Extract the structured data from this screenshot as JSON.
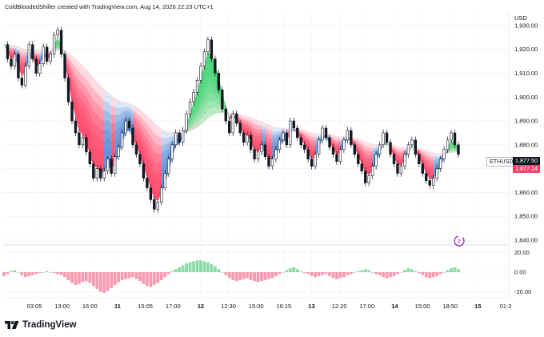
{
  "attribution": "ColdBloodedShiller created with TradingView.com, Aug 14, 2026 22:23 UTC+1",
  "currency": "USD",
  "brand": "TradingView",
  "symbol": "ETHUSD",
  "price_tags": {
    "last": "1,877.50",
    "secondary": "1,877.14"
  },
  "colors": {
    "bull": "#26c05a",
    "bear": "#f0456e",
    "ribbon_up": "#4cd67a",
    "ribbon_down": "#ff4d6d",
    "ribbon_cool": "#5b8fd6",
    "candle": "#131722",
    "tag_last": "#131722",
    "tag_secondary": "#f0456e"
  },
  "chart_data": [
    {
      "type": "line",
      "title": "ETHUSD",
      "series": [
        {
          "values": [
            1922,
            1916,
            1913,
            1918,
            1908,
            1905,
            1913,
            1922,
            1916,
            1910,
            1914,
            1921,
            1915,
            1918,
            1926,
            1928,
            1918,
            1908,
            1898,
            1890,
            1885,
            1880,
            1883,
            1877,
            1872,
            1866,
            1870,
            1866,
            1869,
            1874,
            1868,
            1875,
            1879,
            1885,
            1890,
            1887,
            1880,
            1876,
            1872,
            1866,
            1862,
            1857,
            1853,
            1856,
            1862,
            1868,
            1874,
            1880,
            1885,
            1881,
            1886,
            1893,
            1898,
            1902,
            1907,
            1913,
            1919,
            1924,
            1916,
            1910,
            1903,
            1895,
            1890,
            1885,
            1893,
            1889,
            1885,
            1881,
            1884,
            1878,
            1874,
            1877,
            1880,
            1875,
            1871,
            1874,
            1878,
            1882,
            1885,
            1880,
            1890,
            1887,
            1883,
            1880,
            1878,
            1874,
            1871,
            1876,
            1882,
            1887,
            1883,
            1879,
            1876,
            1873,
            1878,
            1882,
            1886,
            1880,
            1876,
            1872,
            1869,
            1864,
            1867,
            1871,
            1876,
            1880,
            1885,
            1881,
            1876,
            1872,
            1868,
            1871,
            1876,
            1880,
            1882,
            1876,
            1872,
            1868,
            1865,
            1863,
            1866,
            1870,
            1874,
            1878,
            1882,
            1885,
            1880,
            1876
          ]
        }
      ],
      "ylim": [
        1838,
        1936
      ],
      "yticks": [
        "1,930.00",
        "1,920.00",
        "1,910.00",
        "1,900.00",
        "1,890.00",
        "1,880.00",
        "1,870.00",
        "1,860.00",
        "1,850.00",
        "1,840.00"
      ],
      "grid": true
    },
    {
      "type": "bar",
      "title": "",
      "series": [
        {
          "values": [
            -4,
            -2,
            1,
            2,
            0,
            -3,
            -5,
            -4,
            -3,
            -2,
            -1,
            0,
            1,
            0,
            -1,
            -2,
            -3,
            -5,
            -8,
            -11,
            -13,
            -12,
            -10,
            -9,
            -11,
            -14,
            -17,
            -20,
            -21,
            -19,
            -16,
            -13,
            -10,
            -8,
            -7,
            -6,
            -5,
            -7,
            -9,
            -12,
            -14,
            -15,
            -13,
            -11,
            -8,
            -5,
            -2,
            1,
            3,
            5,
            7,
            9,
            10,
            11,
            12,
            12,
            11,
            10,
            8,
            6,
            3,
            0,
            -3,
            -6,
            -8,
            -9,
            -8,
            -7,
            -6,
            -8,
            -9,
            -10,
            -9,
            -8,
            -7,
            -6,
            -4,
            -2,
            0,
            2,
            4,
            5,
            3,
            1,
            -1,
            -2,
            -4,
            -5,
            -4,
            -3,
            -2,
            -4,
            -6,
            -7,
            -6,
            -5,
            -3,
            -2,
            0,
            1,
            2,
            3,
            2,
            0,
            -2,
            -3,
            -5,
            -6,
            -5,
            -4,
            -2,
            0,
            2,
            4,
            3,
            1,
            -1,
            -3,
            -5,
            -6,
            -5,
            -4,
            -2,
            0,
            2,
            4,
            5,
            3
          ]
        }
      ],
      "ylim": [
        -26,
        26
      ],
      "yticks": [
        "20.00",
        "0.00",
        "-20.00"
      ],
      "grid": true
    }
  ],
  "x_axis": {
    "labels": [
      {
        "text": "03:05",
        "strong": false
      },
      {
        "text": "13:00",
        "strong": false
      },
      {
        "text": "16:00",
        "strong": false
      },
      {
        "text": "11",
        "strong": true
      },
      {
        "text": "15:05",
        "strong": false
      },
      {
        "text": "17:00",
        "strong": false
      },
      {
        "text": "12",
        "strong": true
      },
      {
        "text": "12:30",
        "strong": false
      },
      {
        "text": "15:00",
        "strong": false
      },
      {
        "text": "16:15",
        "strong": false
      },
      {
        "text": "13",
        "strong": true
      },
      {
        "text": "12:20",
        "strong": false
      },
      {
        "text": "17:00",
        "strong": false
      },
      {
        "text": "14",
        "strong": true
      },
      {
        "text": "15:00",
        "strong": false
      },
      {
        "text": "18:50",
        "strong": false
      },
      {
        "text": "15",
        "strong": true
      },
      {
        "text": "01:3",
        "strong": false
      }
    ]
  }
}
